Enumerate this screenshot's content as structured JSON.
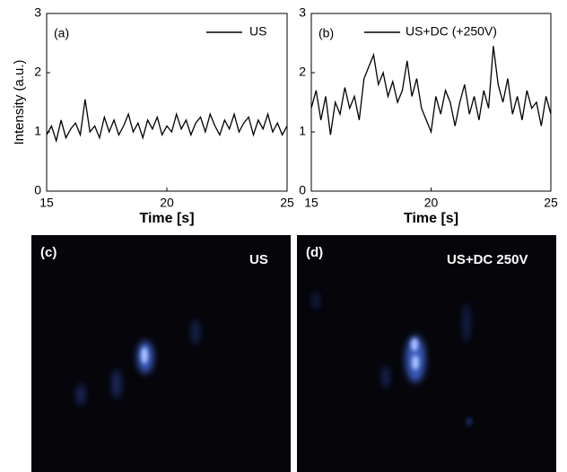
{
  "chart_data": [
    {
      "type": "line",
      "annotation": "(a)",
      "ylabel": "Intensity (a.u.)",
      "xlabel": "Time [s]",
      "xlim": [
        15,
        25
      ],
      "xticks": [
        15,
        20,
        25
      ],
      "ylim": [
        0,
        3
      ],
      "yticks": [
        0,
        1,
        2,
        3
      ],
      "x": [
        15,
        15.2,
        15.4,
        15.6,
        15.8,
        16,
        16.2,
        16.4,
        16.6,
        16.8,
        17,
        17.2,
        17.4,
        17.6,
        17.8,
        18,
        18.2,
        18.4,
        18.6,
        18.8,
        19,
        19.2,
        19.4,
        19.6,
        19.8,
        20,
        20.2,
        20.4,
        20.6,
        20.8,
        21,
        21.2,
        21.4,
        21.6,
        21.8,
        22,
        22.2,
        22.4,
        22.6,
        22.8,
        23,
        23.2,
        23.4,
        23.6,
        23.8,
        24,
        24.2,
        24.4,
        24.6,
        24.8,
        25
      ],
      "series": [
        {
          "name": "US",
          "color": "#000000",
          "values": [
            0.95,
            1.1,
            0.85,
            1.2,
            0.9,
            1.05,
            1.15,
            0.95,
            1.55,
            1.0,
            1.1,
            0.9,
            1.25,
            1.0,
            1.2,
            0.95,
            1.1,
            1.3,
            1.0,
            1.15,
            0.9,
            1.2,
            1.05,
            1.25,
            0.95,
            1.1,
            1.0,
            1.3,
            1.05,
            1.2,
            0.95,
            1.15,
            1.25,
            1.0,
            1.3,
            1.1,
            0.95,
            1.2,
            1.05,
            1.3,
            1.0,
            1.15,
            1.25,
            0.95,
            1.2,
            1.05,
            1.3,
            1.0,
            1.15,
            0.95,
            1.1
          ]
        }
      ]
    },
    {
      "type": "line",
      "annotation": "(b)",
      "xlabel": "Time [s]",
      "xlim": [
        15,
        25
      ],
      "xticks": [
        15,
        20,
        25
      ],
      "ylim": [
        0,
        3
      ],
      "yticks": [
        0,
        1,
        2,
        3
      ],
      "x": [
        15,
        15.2,
        15.4,
        15.6,
        15.8,
        16,
        16.2,
        16.4,
        16.6,
        16.8,
        17,
        17.2,
        17.4,
        17.6,
        17.8,
        18,
        18.2,
        18.4,
        18.6,
        18.8,
        19,
        19.2,
        19.4,
        19.6,
        19.8,
        20,
        20.2,
        20.4,
        20.6,
        20.8,
        21,
        21.2,
        21.4,
        21.6,
        21.8,
        22,
        22.2,
        22.4,
        22.6,
        22.8,
        23,
        23.2,
        23.4,
        23.6,
        23.8,
        24,
        24.2,
        24.4,
        24.6,
        24.8,
        25
      ],
      "series": [
        {
          "name": "US+DC (+250V)",
          "color": "#000000",
          "values": [
            1.4,
            1.7,
            1.2,
            1.6,
            0.95,
            1.5,
            1.3,
            1.75,
            1.4,
            1.6,
            1.2,
            1.9,
            2.1,
            2.3,
            1.8,
            2.0,
            1.6,
            1.85,
            1.5,
            1.7,
            2.2,
            1.6,
            1.9,
            1.4,
            1.2,
            1.0,
            1.6,
            1.3,
            1.7,
            1.5,
            1.1,
            1.5,
            1.8,
            1.3,
            1.6,
            1.2,
            1.7,
            1.4,
            2.45,
            1.8,
            1.5,
            1.9,
            1.3,
            1.6,
            1.2,
            1.7,
            1.4,
            1.5,
            1.1,
            1.6,
            1.3
          ]
        }
      ]
    }
  ],
  "images": [
    {
      "label": "(c)",
      "caption": "US"
    },
    {
      "label": "(d)",
      "caption": "US+DC 250V"
    }
  ]
}
